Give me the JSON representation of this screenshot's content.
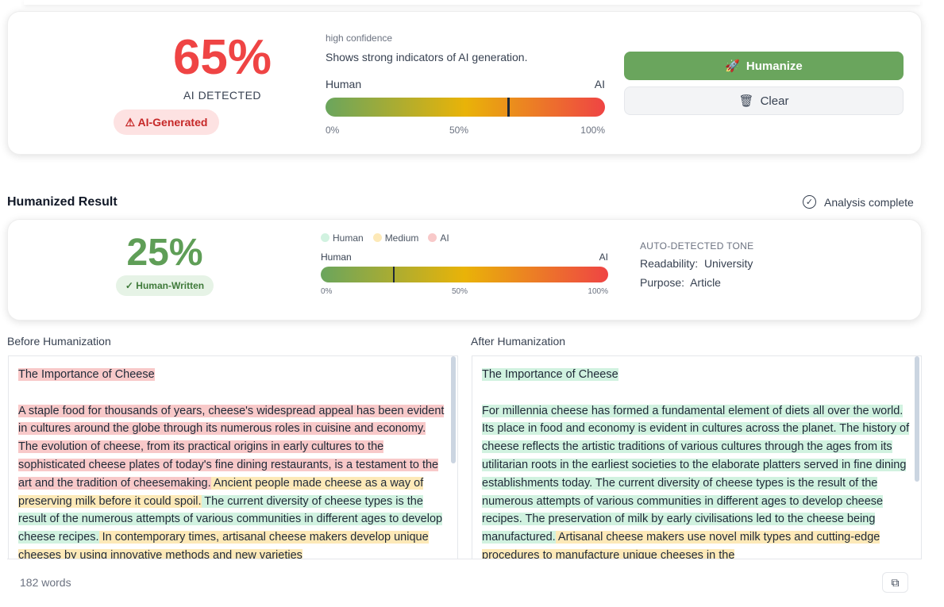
{
  "detection": {
    "percent": "65%",
    "percent_value": 65,
    "label": "AI DETECTED",
    "badge": "⚠ AI-Generated",
    "confidence": "high confidence",
    "description": "Shows strong indicators of AI generation.",
    "gauge_left": "Human",
    "gauge_right": "AI",
    "ticks": [
      "0%",
      "50%",
      "100%"
    ]
  },
  "actions": {
    "humanize": "Humanize",
    "clear": "Clear"
  },
  "result": {
    "title": "Humanized Result",
    "status": "Analysis complete",
    "percent": "25%",
    "percent_value": 25,
    "badge": "✓ Human-Written",
    "legend": [
      "Human",
      "Medium",
      "AI"
    ],
    "gauge_left": "Human",
    "gauge_right": "AI",
    "ticks": [
      "0%",
      "50%",
      "100%"
    ],
    "tone_title": "AUTO-DETECTED TONE",
    "readability_label": "Readability:",
    "readability": "University",
    "purpose_label": "Purpose:",
    "purpose": "Article"
  },
  "colors": {
    "human": "#d1f2e0",
    "medium": "#fde9b8",
    "ai": "#f8c9c9",
    "green": "#6aa55d",
    "red": "#ef4444"
  },
  "before": {
    "label": "Before Humanization",
    "title": "The Importance of Cheese",
    "title_level": "ai",
    "segments": [
      {
        "level": "ai",
        "text": "A staple food for thousands of years, cheese's widespread appeal has been evident in cultures around the globe through its numerous roles in cuisine and economy. The evolution of cheese, from its practical origins in early cultures to the sophisticated cheese plates of today's fine dining restaurants, is a testament to the art and the tradition of cheesemaking."
      },
      {
        "level": "medium",
        "text": " Ancient people made cheese as a way of preserving milk before it could spoil."
      },
      {
        "level": "human",
        "text": " The current diversity of cheese types is the result of the numerous attempts of various communities in different ages to develop cheese recipes."
      },
      {
        "level": "medium",
        "text": " In contemporary times, artisanal cheese makers develop unique cheeses by using innovative methods and new varieties"
      }
    ]
  },
  "after": {
    "label": "After Humanization",
    "title": "The Importance of Cheese",
    "title_level": "human",
    "segments": [
      {
        "level": "human",
        "text": "For millennia cheese has formed a fundamental element of diets all over the world. Its place in food and economy is evident in cultures across the planet. The history of cheese reflects the artistic traditions of various cultures through the ages from its utilitarian roots in the earliest societies to the elaborate platters served in fine dining establishments today. The current diversity of cheese types is the result of the numerous attempts of various communities in different ages to develop cheese recipes. The preservation of milk by early civilisations led to the cheese being manufactured."
      },
      {
        "level": "medium",
        "text": " Artisanal cheese makers use novel milk types and cutting-edge procedures to manufacture unique cheeses in the"
      }
    ]
  },
  "footer": {
    "word_count": "182 words"
  }
}
